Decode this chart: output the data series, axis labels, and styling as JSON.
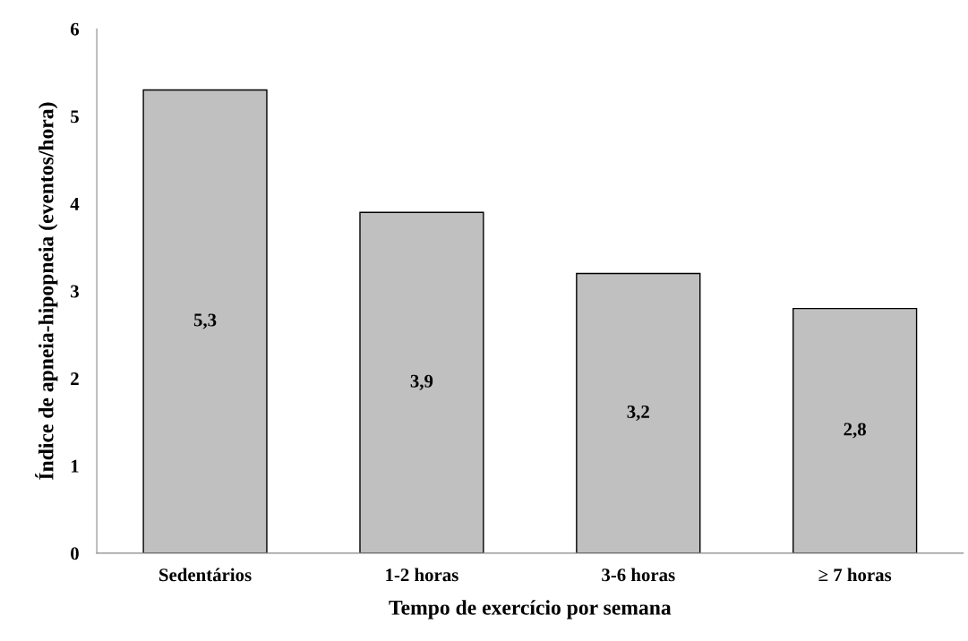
{
  "chart_data": {
    "type": "bar",
    "xlabel": "Tempo de exercício por semana",
    "ylabel": "Índice de apneia-hipopneia (eventos/hora)",
    "categories": [
      "Sedentários",
      "1-2 horas",
      "3-6 horas",
      "≥ 7 horas"
    ],
    "values": [
      5.3,
      3.9,
      3.2,
      2.8
    ],
    "value_labels": [
      "5,3",
      "3,9",
      "3,2",
      "2,8"
    ],
    "color": "#c0c0c0",
    "ylim": [
      0,
      6
    ],
    "yticks": [
      0,
      1,
      2,
      3,
      4,
      5,
      6
    ],
    "grid": false,
    "legend": false
  }
}
